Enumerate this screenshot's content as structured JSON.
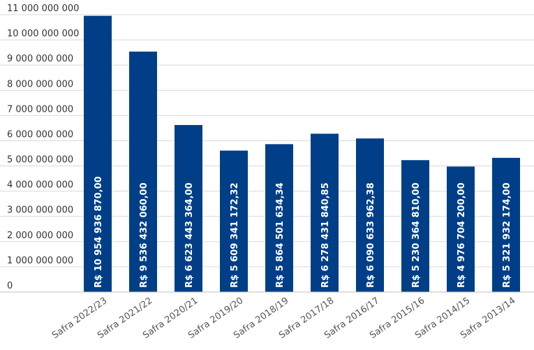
{
  "chart_data": {
    "type": "bar",
    "title": "",
    "xlabel": "",
    "ylabel": "",
    "categories": [
      "Safra 2022/23",
      "Safra 2021/22",
      "Safra 2020/21",
      "Safra 2019/20",
      "Safra 2018/19",
      "Safra 2017/18",
      "Safra 2016/17",
      "Safra 2015/16",
      "Safra 2014/15",
      "Safra 2013/14"
    ],
    "values": [
      10954936870.0,
      9536432060.0,
      6623443364.0,
      5609341172.32,
      5864501634.34,
      6278431840.85,
      6090633962.38,
      5230364810.0,
      4976704200.0,
      5321932174.0
    ],
    "value_labels": [
      "R$ 10 954 936 870,00",
      "R$ 9 536 432 060,00",
      "R$ 6 623 443 364,00",
      "R$ 5 609 341 172,32",
      "R$ 5 864 501 634,34",
      "R$ 6 278 431 840,85",
      "R$ 6 090 633 962,38",
      "R$ 5 230 364 810,00",
      "R$ 4 976 704 200,00",
      "R$ 5 321 932 174,00"
    ],
    "yticks": [
      0,
      1000000000,
      2000000000,
      3000000000,
      4000000000,
      5000000000,
      6000000000,
      7000000000,
      8000000000,
      9000000000,
      10000000000,
      11000000000
    ],
    "ytick_labels": [
      "0",
      "1 000 000 000",
      "2 000 000 000",
      "3 000 000 000",
      "4 000 000 000",
      "5 000 000 000",
      "6 000 000 000",
      "7 000 000 000",
      "8 000 000 000",
      "9 000 000 000",
      "10 000 000 000",
      "11 000 000 000"
    ],
    "ylim": [
      0,
      11000000000
    ],
    "grid": true,
    "bar_color": "#003f87"
  }
}
